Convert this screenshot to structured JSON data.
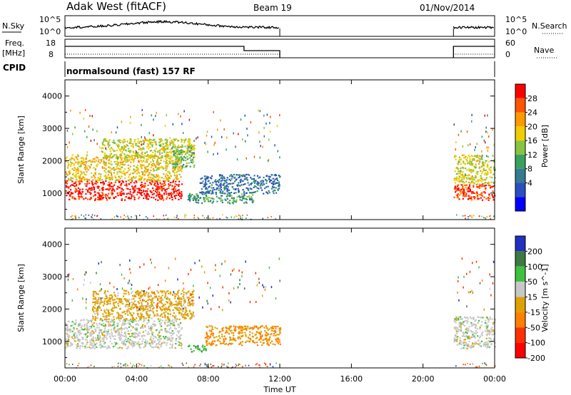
{
  "header": {
    "station": "Adak West (fitACF)",
    "beam": "Beam 19",
    "date": "01/Nov/2014"
  },
  "nsky_panel": {
    "left_label": "N.Sky",
    "left_ticks": [
      "10^5",
      "10^0"
    ],
    "right_label": "N.Search",
    "right_ticks": [
      "10^5",
      "10^0"
    ]
  },
  "freq_panel": {
    "left_label_1": "Freq.",
    "left_label_2": "[MHz]",
    "left_ticks": [
      "18",
      "8"
    ],
    "right_label": "Nave",
    "right_ticks": [
      "60",
      "0"
    ]
  },
  "cpid_panel": {
    "label": "CPID",
    "value": "normalsound (fast) 157 RF"
  },
  "power_panel": {
    "ylabel": "Slant Range [km]",
    "yticks": [
      "4000",
      "3000",
      "2000",
      "1000"
    ],
    "colorbar_label": "Power [dB]",
    "colorbar_ticks": [
      "28",
      "24",
      "20",
      "16",
      "12",
      "8",
      "4"
    ],
    "colors": [
      "#ff0000",
      "#ff5500",
      "#ff9900",
      "#f0cc00",
      "#88c440",
      "#3aa060",
      "#347a90",
      "#2b4fbe",
      "#0000ff"
    ]
  },
  "velocity_panel": {
    "ylabel": "Slant Range [km]",
    "yticks": [
      "4000",
      "3000",
      "2000",
      "1000"
    ],
    "colorbar_label": "Velocity [m s^-1]",
    "colorbar_ticks": [
      "200",
      "100",
      "50",
      "15",
      "-15",
      "-50",
      "-100",
      "-200"
    ],
    "colors": [
      "#2030c0",
      "#3c7a40",
      "#40c040",
      "#c8c8c8",
      "#e0a000",
      "#ff8000",
      "#ff3000",
      "#ff0000"
    ]
  },
  "xaxis": {
    "label": "Time UT",
    "ticks": [
      "00:00",
      "04:00",
      "08:00",
      "12:00",
      "16:00",
      "20:00",
      "00:00"
    ]
  },
  "chart_data": {
    "type": "heatmap",
    "x_range_hours": [
      0,
      24
    ],
    "y_range_km": [
      180,
      4500
    ],
    "data_gap_hours": [
      12.0,
      21.7
    ],
    "power_regions_db": [
      {
        "t": [
          0.0,
          6.5
        ],
        "range_km": [
          800,
          1400
        ],
        "power_db": 30
      },
      {
        "t": [
          0.0,
          6.5
        ],
        "range_km": [
          1400,
          2200
        ],
        "power_db": 20
      },
      {
        "t": [
          2.0,
          7.2
        ],
        "range_km": [
          2100,
          2700
        ],
        "power_db": 18
      },
      {
        "t": [
          6.0,
          7.2
        ],
        "range_km": [
          1800,
          2500
        ],
        "power_db": 14
      },
      {
        "t": [
          6.8,
          10.5
        ],
        "range_km": [
          700,
          1000
        ],
        "power_db": 12
      },
      {
        "t": [
          7.5,
          12.0
        ],
        "range_km": [
          1000,
          1600
        ],
        "power_db": 8
      },
      {
        "t": [
          21.7,
          24.0
        ],
        "range_km": [
          800,
          1300
        ],
        "power_db": 28
      },
      {
        "t": [
          21.7,
          24.0
        ],
        "range_km": [
          1300,
          2200
        ],
        "power_db": 18
      }
    ],
    "velocity_regions_ms": [
      {
        "t": [
          0.0,
          6.5
        ],
        "range_km": [
          800,
          1700
        ],
        "velocity": 0
      },
      {
        "t": [
          1.5,
          7.2
        ],
        "range_km": [
          1700,
          2600
        ],
        "velocity": -30
      },
      {
        "t": [
          6.8,
          8.0
        ],
        "range_km": [
          700,
          900
        ],
        "velocity": 60
      },
      {
        "t": [
          7.8,
          12.0
        ],
        "range_km": [
          900,
          1500
        ],
        "velocity": -50
      },
      {
        "t": [
          21.7,
          24.0
        ],
        "range_km": [
          800,
          1800
        ],
        "velocity": 0
      }
    ]
  }
}
